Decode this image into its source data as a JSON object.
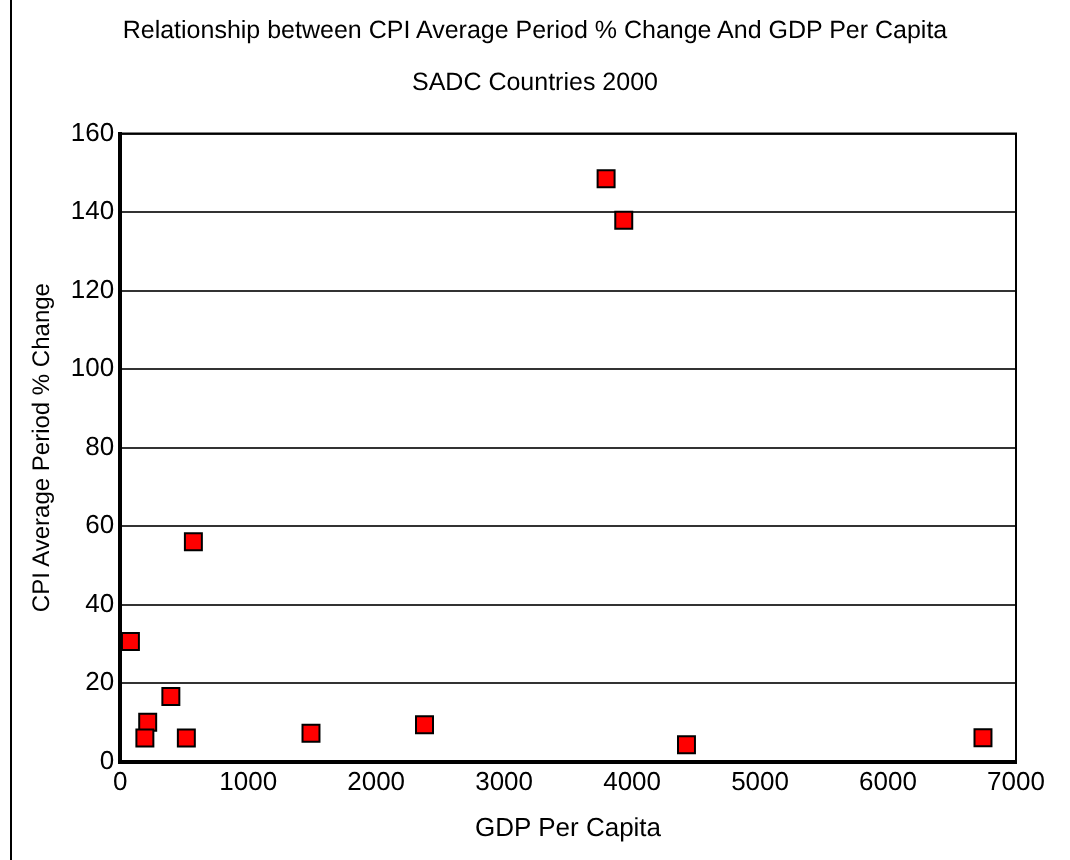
{
  "chart_data": {
    "type": "scatter",
    "title": "Relationship between CPI Average Period % Change And GDP Per Capita",
    "subtitle": "SADC Countries 2000",
    "xlabel": "GDP Per Capita",
    "ylabel": "CPI Average Period % Change",
    "x": [
      80,
      572,
      396,
      215,
      193,
      517,
      1491,
      2378,
      3797,
      3935,
      4425,
      6742
    ],
    "values": [
      30.6,
      56,
      16.6,
      10,
      6,
      6,
      7.2,
      9.4,
      148.5,
      137.9,
      4.3,
      6.1
    ],
    "color": "#ff0000",
    "marker": "square",
    "xlim": [
      0,
      7000
    ],
    "xticks": [
      0,
      1000,
      2000,
      3000,
      4000,
      5000,
      6000,
      7000
    ],
    "ylim": [
      0,
      160
    ],
    "yticks": [
      0,
      20,
      40,
      60,
      80,
      100,
      120,
      140,
      160
    ],
    "grid": "y",
    "legend": false
  }
}
